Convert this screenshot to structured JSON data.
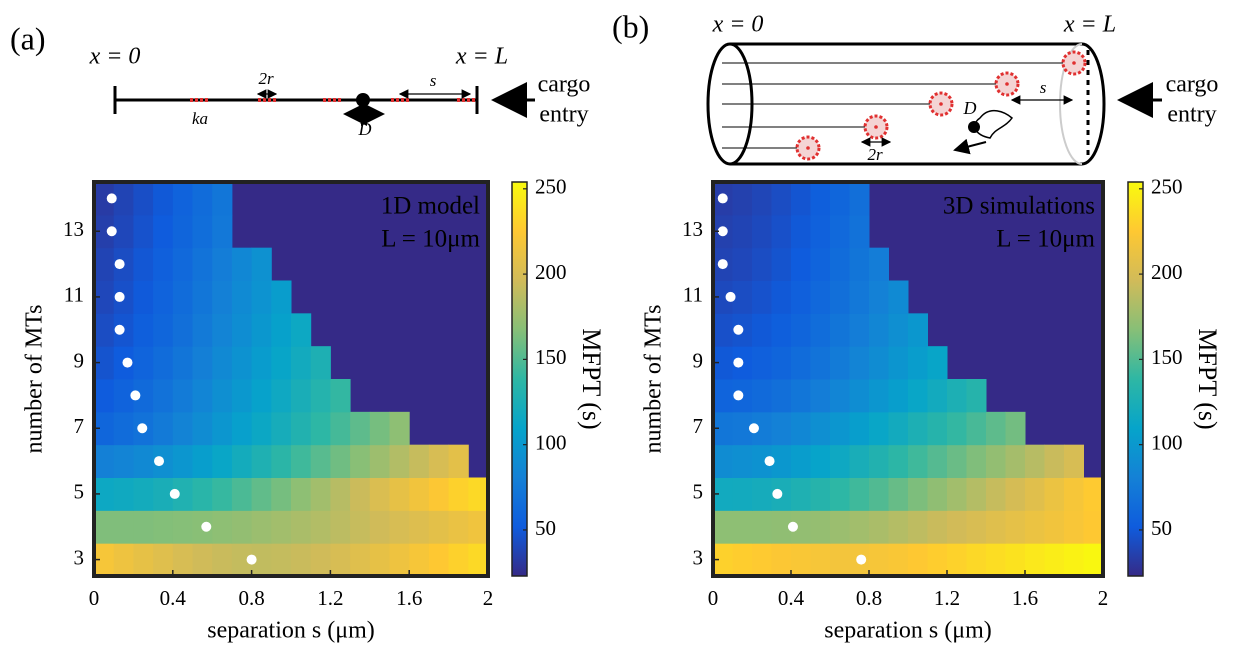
{
  "chart_data": [
    {
      "type": "heatmap",
      "x_label": "separation s (μm)",
      "y_label": "number of MTs",
      "annotation": [
        "1D model",
        "L = 10μm"
      ],
      "xbins": [
        0,
        0.1,
        0.2,
        0.3,
        0.4,
        0.5,
        0.6,
        0.7,
        0.8,
        0.9,
        1,
        1.1,
        1.2,
        1.3,
        1.4,
        1.5,
        1.6,
        1.7,
        1.8,
        1.9,
        2
      ],
      "y": [
        3,
        4,
        5,
        6,
        7,
        8,
        9,
        10,
        11,
        12,
        13,
        14
      ],
      "values": [
        [
          220,
          215,
          210,
          205,
          200,
          196,
          193,
          191,
          190,
          191,
          193,
          196,
          200,
          205,
          210,
          215,
          220,
          225,
          230,
          235
        ],
        [
          165,
          165,
          165,
          166,
          167,
          168,
          170,
          172,
          175,
          178,
          181,
          184,
          188,
          192,
          196,
          200,
          204,
          208,
          212,
          216
        ],
        [
          115,
          117,
          120,
          124,
          129,
          135,
          141,
          148,
          155,
          162,
          170,
          178,
          186,
          194,
          202,
          210,
          217,
          224,
          230,
          235
        ],
        [
          80,
          83,
          87,
          92,
          98,
          105,
          112,
          120,
          128,
          136,
          144,
          152,
          160,
          168,
          176,
          184,
          192,
          200,
          208,
          null
        ],
        [
          60,
          64,
          69,
          75,
          82,
          90,
          98,
          106,
          114,
          122,
          130,
          138,
          146,
          154,
          162,
          170,
          null,
          null,
          null,
          null
        ],
        [
          52,
          57,
          63,
          69,
          76,
          84,
          92,
          100,
          108,
          116,
          124,
          132,
          140,
          null,
          null,
          null,
          null,
          null,
          null,
          null
        ],
        [
          47,
          52,
          58,
          64,
          71,
          79,
          87,
          95,
          103,
          111,
          119,
          127,
          null,
          null,
          null,
          null,
          null,
          null,
          null,
          null
        ],
        [
          43,
          48,
          54,
          60,
          67,
          75,
          83,
          91,
          99,
          107,
          115,
          null,
          null,
          null,
          null,
          null,
          null,
          null,
          null,
          null
        ],
        [
          40,
          45,
          51,
          57,
          64,
          72,
          80,
          88,
          96,
          104,
          null,
          null,
          null,
          null,
          null,
          null,
          null,
          null,
          null,
          null
        ],
        [
          38,
          43,
          49,
          55,
          62,
          70,
          78,
          86,
          94,
          null,
          null,
          null,
          null,
          null,
          null,
          null,
          null,
          null,
          null,
          null
        ],
        [
          35,
          40,
          46,
          52,
          59,
          66,
          74,
          null,
          null,
          null,
          null,
          null,
          null,
          null,
          null,
          null,
          null,
          null,
          null,
          null
        ],
        [
          33,
          38,
          44,
          50,
          57,
          64,
          72,
          null,
          null,
          null,
          null,
          null,
          null,
          null,
          null,
          null,
          null,
          null,
          null,
          null
        ]
      ],
      "optimal": {
        "color": "#ffffff",
        "x": [
          0.8,
          0.57,
          0.41,
          0.33,
          0.245,
          0.21,
          0.17,
          0.13,
          0.13,
          0.13,
          0.09,
          0.09
        ],
        "y": [
          3,
          4,
          5,
          6,
          7,
          8,
          9,
          10,
          11,
          12,
          13,
          14
        ]
      },
      "xlim": [
        0,
        2
      ],
      "xticks": [
        0,
        0.4,
        0.8,
        1.2,
        1.6,
        2
      ],
      "ylim": [
        2.5,
        14.5
      ],
      "yticks": [
        3,
        5,
        7,
        9,
        11,
        13
      ],
      "zlim": [
        23,
        254
      ],
      "colorbar_ticks": [
        50,
        100,
        150,
        200,
        250
      ],
      "colorbar_label": "MFPT (s)",
      "colormap": [
        "#352a87",
        "#0f5cdd",
        "#1481d6",
        "#06a4ca",
        "#2eb7a4",
        "#87bf77",
        "#d1bb59",
        "#fec832",
        "#f9fb0e"
      ],
      "missing_color": "#352a87"
    },
    {
      "type": "heatmap",
      "x_label": "separation s (μm)",
      "y_label": "number of MTs",
      "annotation": [
        "3D simulations",
        "L = 10μm"
      ],
      "xbins": [
        0,
        0.1,
        0.2,
        0.3,
        0.4,
        0.5,
        0.6,
        0.7,
        0.8,
        0.9,
        1,
        1.1,
        1.2,
        1.3,
        1.4,
        1.5,
        1.6,
        1.7,
        1.8,
        1.9,
        2
      ],
      "y": [
        3,
        4,
        5,
        6,
        7,
        8,
        9,
        10,
        11,
        12,
        13,
        14
      ],
      "values": [
        [
          230,
          228,
          226,
          224,
          222,
          220,
          218,
          218,
          220,
          222,
          225,
          228,
          231,
          234,
          237,
          240,
          243,
          246,
          249,
          252
        ],
        [
          170,
          170,
          170,
          171,
          172,
          173,
          175,
          178,
          181,
          185,
          189,
          193,
          197,
          201,
          205,
          209,
          213,
          217,
          221,
          225
        ],
        [
          118,
          119,
          121,
          124,
          128,
          133,
          138,
          144,
          150,
          157,
          164,
          171,
          178,
          185,
          192,
          199,
          206,
          213,
          220,
          226
        ],
        [
          90,
          92,
          95,
          99,
          104,
          110,
          116,
          123,
          130,
          137,
          144,
          151,
          158,
          165,
          172,
          179,
          186,
          193,
          200,
          null
        ],
        [
          72,
          74,
          77,
          81,
          86,
          92,
          98,
          105,
          112,
          119,
          126,
          133,
          140,
          147,
          154,
          161,
          null,
          null,
          null,
          null
        ],
        [
          58,
          60,
          63,
          67,
          72,
          78,
          84,
          91,
          98,
          105,
          112,
          119,
          126,
          133,
          null,
          null,
          null,
          null,
          null,
          null
        ],
        [
          50,
          52,
          55,
          59,
          64,
          70,
          76,
          83,
          90,
          97,
          104,
          111,
          null,
          null,
          null,
          null,
          null,
          null,
          null,
          null
        ],
        [
          45,
          47,
          50,
          54,
          59,
          65,
          71,
          78,
          85,
          92,
          99,
          null,
          null,
          null,
          null,
          null,
          null,
          null,
          null,
          null
        ],
        [
          41,
          43,
          46,
          50,
          55,
          61,
          67,
          74,
          81,
          88,
          null,
          null,
          null,
          null,
          null,
          null,
          null,
          null,
          null,
          null
        ],
        [
          38,
          40,
          43,
          47,
          52,
          58,
          64,
          71,
          78,
          null,
          null,
          null,
          null,
          null,
          null,
          null,
          null,
          null,
          null,
          null
        ],
        [
          36,
          38,
          41,
          45,
          50,
          56,
          62,
          69,
          null,
          null,
          null,
          null,
          null,
          null,
          null,
          null,
          null,
          null,
          null,
          null
        ],
        [
          34,
          36,
          39,
          43,
          48,
          54,
          60,
          67,
          null,
          null,
          null,
          null,
          null,
          null,
          null,
          null,
          null,
          null,
          null,
          null
        ]
      ],
      "optimal": {
        "color": "#ffffff",
        "x": [
          0.76,
          0.41,
          0.33,
          0.29,
          0.21,
          0.13,
          0.13,
          0.13,
          0.09,
          0.05,
          0.05,
          0.05
        ],
        "y": [
          3,
          4,
          5,
          6,
          7,
          8,
          9,
          10,
          11,
          12,
          13,
          14
        ]
      },
      "xlim": [
        0,
        2
      ],
      "xticks": [
        0,
        0.4,
        0.8,
        1.2,
        1.6,
        2
      ],
      "ylim": [
        2.5,
        14.5
      ],
      "yticks": [
        3,
        5,
        7,
        9,
        11,
        13
      ],
      "zlim": [
        23,
        254
      ],
      "colorbar_ticks": [
        50,
        100,
        150,
        200,
        250
      ],
      "colorbar_label": "MFPT (s)",
      "colormap": [
        "#352a87",
        "#0f5cdd",
        "#1481d6",
        "#06a4ca",
        "#2eb7a4",
        "#87bf77",
        "#d1bb59",
        "#fec832",
        "#f9fb0e"
      ],
      "missing_color": "#352a87"
    }
  ],
  "schematic_a": {
    "panel": "(a)",
    "left": "x = 0",
    "right": "x = L",
    "cargo": "cargo",
    "entry": "entry",
    "radius": "2r",
    "spacing": "s",
    "rate": "ka",
    "diffusion": "D"
  },
  "schematic_b": {
    "panel": "(b)",
    "left": "x = 0",
    "right": "x = L",
    "cargo": "cargo",
    "entry": "entry",
    "radius": "2r",
    "spacing": "s",
    "diffusion": "D"
  }
}
